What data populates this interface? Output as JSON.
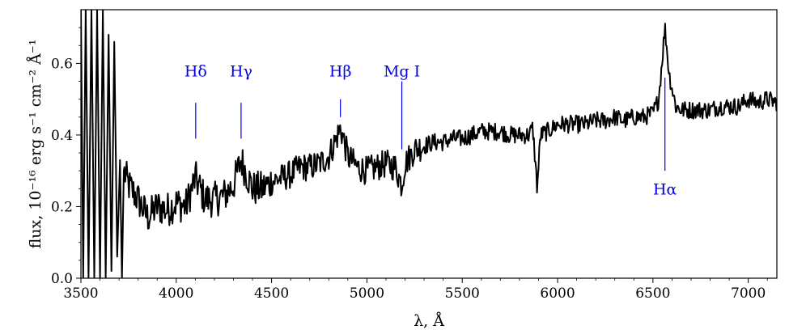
{
  "chart_data": {
    "type": "line",
    "xlabel": "λ, Å",
    "ylabel": "flux, 10⁻¹⁶ erg s⁻¹ cm⁻² Å⁻¹",
    "xlim": [
      3500,
      7150
    ],
    "ylim": [
      0.0,
      0.75
    ],
    "xticks": [
      "3500",
      "4000",
      "4500",
      "5000",
      "5500",
      "6000",
      "6500",
      "7000"
    ],
    "yticks": [
      "0.0",
      "0.2",
      "0.4",
      "0.6"
    ],
    "line_color": "#000000",
    "annotation_color": "#0000ee",
    "grid": false,
    "legend": "none",
    "anchors": [
      [
        3500,
        0.75
      ],
      [
        3512,
        0.0
      ],
      [
        3525,
        0.75
      ],
      [
        3540,
        0.0
      ],
      [
        3555,
        0.75
      ],
      [
        3570,
        0.0
      ],
      [
        3585,
        0.75
      ],
      [
        3600,
        0.0
      ],
      [
        3615,
        0.75
      ],
      [
        3630,
        0.0
      ],
      [
        3645,
        0.68
      ],
      [
        3660,
        0.02
      ],
      [
        3675,
        0.66
      ],
      [
        3690,
        0.06
      ],
      [
        3705,
        0.33
      ],
      [
        3715,
        0.0
      ],
      [
        3725,
        0.3
      ],
      [
        3750,
        0.26
      ],
      [
        3800,
        0.22
      ],
      [
        3850,
        0.17
      ],
      [
        3900,
        0.2
      ],
      [
        3950,
        0.19
      ],
      [
        4000,
        0.21
      ],
      [
        4050,
        0.2
      ],
      [
        4100,
        0.28
      ],
      [
        4150,
        0.22
      ],
      [
        4200,
        0.22
      ],
      [
        4250,
        0.23
      ],
      [
        4300,
        0.26
      ],
      [
        4340,
        0.33
      ],
      [
        4400,
        0.25
      ],
      [
        4450,
        0.25
      ],
      [
        4500,
        0.27
      ],
      [
        4550,
        0.28
      ],
      [
        4600,
        0.29
      ],
      [
        4650,
        0.31
      ],
      [
        4700,
        0.31
      ],
      [
        4750,
        0.32
      ],
      [
        4800,
        0.34
      ],
      [
        4862,
        0.42
      ],
      [
        4900,
        0.34
      ],
      [
        4950,
        0.31
      ],
      [
        5000,
        0.3
      ],
      [
        5050,
        0.31
      ],
      [
        5100,
        0.32
      ],
      [
        5150,
        0.31
      ],
      [
        5183,
        0.26
      ],
      [
        5200,
        0.32
      ],
      [
        5250,
        0.36
      ],
      [
        5300,
        0.37
      ],
      [
        5350,
        0.38
      ],
      [
        5400,
        0.38
      ],
      [
        5450,
        0.39
      ],
      [
        5500,
        0.39
      ],
      [
        5550,
        0.4
      ],
      [
        5600,
        0.41
      ],
      [
        5650,
        0.41
      ],
      [
        5700,
        0.41
      ],
      [
        5750,
        0.4
      ],
      [
        5800,
        0.4
      ],
      [
        5850,
        0.4
      ],
      [
        5870,
        0.42
      ],
      [
        5893,
        0.25
      ],
      [
        5910,
        0.4
      ],
      [
        5950,
        0.41
      ],
      [
        6000,
        0.43
      ],
      [
        6050,
        0.43
      ],
      [
        6100,
        0.43
      ],
      [
        6150,
        0.43
      ],
      [
        6200,
        0.44
      ],
      [
        6250,
        0.44
      ],
      [
        6300,
        0.45
      ],
      [
        6350,
        0.44
      ],
      [
        6400,
        0.45
      ],
      [
        6450,
        0.45
      ],
      [
        6500,
        0.46
      ],
      [
        6530,
        0.5
      ],
      [
        6563,
        0.7
      ],
      [
        6585,
        0.57
      ],
      [
        6620,
        0.48
      ],
      [
        6650,
        0.47
      ],
      [
        6700,
        0.47
      ],
      [
        6750,
        0.47
      ],
      [
        6800,
        0.47
      ],
      [
        6850,
        0.48
      ],
      [
        6900,
        0.48
      ],
      [
        6950,
        0.48
      ],
      [
        7000,
        0.5
      ],
      [
        7050,
        0.49
      ],
      [
        7100,
        0.5
      ],
      [
        7150,
        0.49
      ]
    ],
    "annotations": [
      {
        "label": "Hδ",
        "x": 4102,
        "line_from": 0.39,
        "line_to": 0.49,
        "label_y": 0.58
      },
      {
        "label": "Hγ",
        "x": 4340,
        "line_from": 0.39,
        "line_to": 0.49,
        "label_y": 0.58
      },
      {
        "label": "Hβ",
        "x": 4861,
        "line_from": 0.45,
        "line_to": 0.5,
        "label_y": 0.58
      },
      {
        "label": "Mg I",
        "x": 5183,
        "line_from": 0.36,
        "line_to": 0.55,
        "label_y": 0.58
      },
      {
        "label": "Hα",
        "x": 6563,
        "line_from": 0.3,
        "line_to": 0.56,
        "label_y": 0.25
      }
    ]
  }
}
